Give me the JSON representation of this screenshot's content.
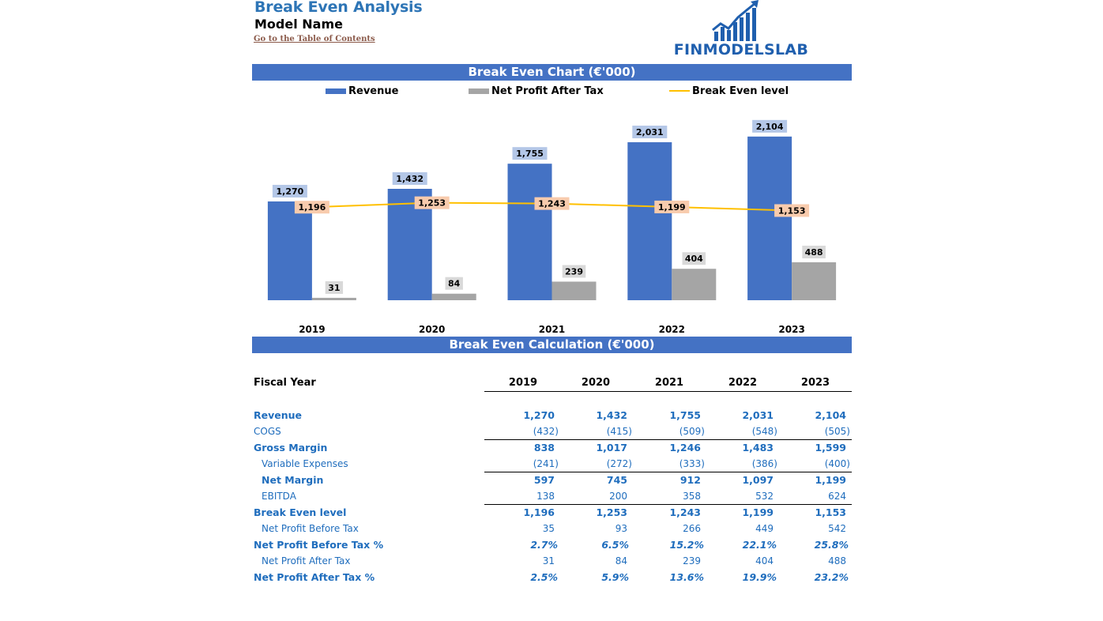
{
  "header": {
    "title": "Break Even Analysis",
    "model_name": "Model Name",
    "toc_link": "Go to the Table of Contents",
    "logo_text": "FINMODELSLAB"
  },
  "colors": {
    "accent": "#4472c4",
    "revenue": "#4472c4",
    "net_profit": "#a5a5a5",
    "break_even": "#ffc000",
    "title_blue": "#2e75b6",
    "table_blue": "#1f6dbd"
  },
  "chart_section_title": "Break Even Chart (€'000)",
  "calc_section_title": "Break Even Calculation (€'000)",
  "chart_data": {
    "type": "bar",
    "categories": [
      "2019",
      "2020",
      "2021",
      "2022",
      "2023"
    ],
    "series": [
      {
        "name": "Revenue",
        "kind": "bar",
        "values": [
          1270,
          1432,
          1755,
          2031,
          2104
        ]
      },
      {
        "name": "Net Profit After Tax",
        "kind": "bar",
        "values": [
          31,
          84,
          239,
          404,
          488
        ]
      },
      {
        "name": "Break Even level",
        "kind": "line",
        "values": [
          1196,
          1253,
          1243,
          1199,
          1153
        ]
      }
    ],
    "value_labels": {
      "revenue": [
        "1,270",
        "1,432",
        "1,755",
        "2,031",
        "2,104"
      ],
      "net_profit": [
        "31",
        "84",
        "239",
        "404",
        "488"
      ],
      "break_even": [
        "1,196",
        "1,253",
        "1,243",
        "1,199",
        "1,153"
      ]
    },
    "ylim": [
      0,
      2600
    ],
    "grid": false,
    "legend_position": "top"
  },
  "table": {
    "header_label": "Fiscal Year",
    "years": [
      "2019",
      "2020",
      "2021",
      "2022",
      "2023"
    ],
    "rows": [
      {
        "label": "Revenue",
        "values": [
          "1,270",
          "1,432",
          "1,755",
          "2,031",
          "2,104"
        ]
      },
      {
        "label": "COGS",
        "values": [
          "(432)",
          "(415)",
          "(509)",
          "(548)",
          "(505)"
        ]
      },
      {
        "label": "Gross Margin",
        "values": [
          "838",
          "1,017",
          "1,246",
          "1,483",
          "1,599"
        ]
      },
      {
        "label": "Variable Expenses",
        "values": [
          "(241)",
          "(272)",
          "(333)",
          "(386)",
          "(400)"
        ]
      },
      {
        "label": "Net Margin",
        "values": [
          "597",
          "745",
          "912",
          "1,097",
          "1,199"
        ]
      },
      {
        "label": "EBITDA",
        "values": [
          "138",
          "200",
          "358",
          "532",
          "624"
        ]
      },
      {
        "label": "Break Even level",
        "values": [
          "1,196",
          "1,253",
          "1,243",
          "1,199",
          "1,153"
        ]
      },
      {
        "label": "Net Profit Before Tax",
        "values": [
          "35",
          "93",
          "266",
          "449",
          "542"
        ]
      },
      {
        "label": "Net Profit Before Tax %",
        "values": [
          "2.7%",
          "6.5%",
          "15.2%",
          "22.1%",
          "25.8%"
        ]
      },
      {
        "label": "Net Profit After Tax",
        "values": [
          "31",
          "84",
          "239",
          "404",
          "488"
        ]
      },
      {
        "label": "Net Profit After Tax %",
        "values": [
          "2.5%",
          "5.9%",
          "13.6%",
          "19.9%",
          "23.2%"
        ]
      }
    ]
  }
}
